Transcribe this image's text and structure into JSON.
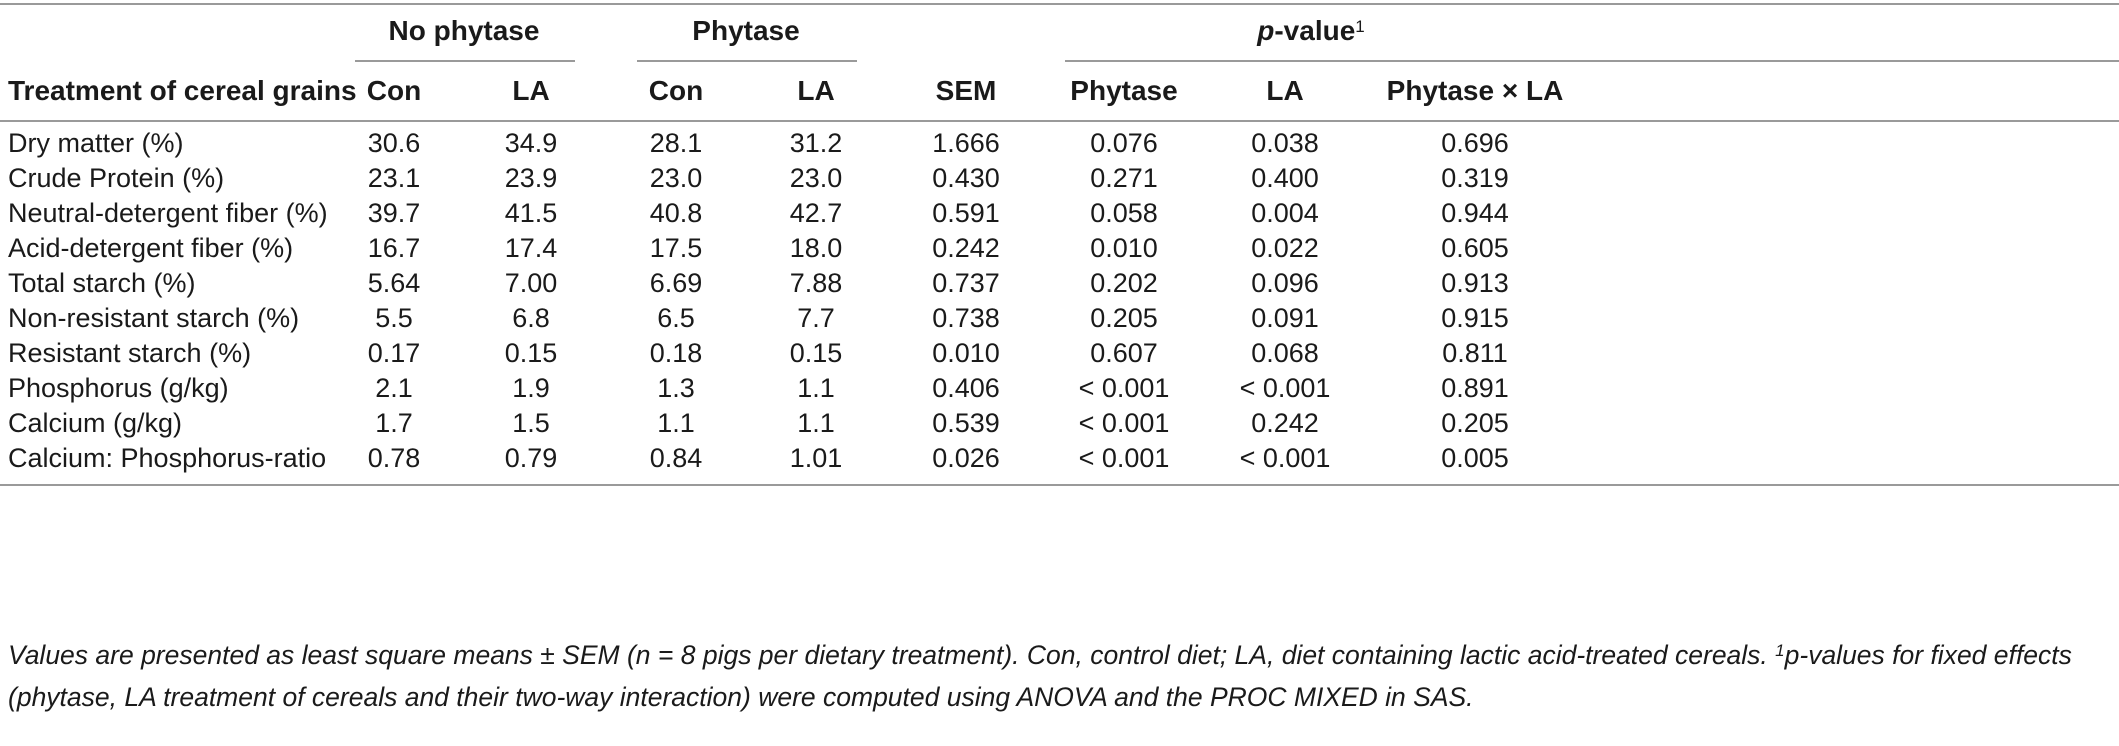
{
  "header": {
    "group_no_phytase": "No phytase",
    "group_phytase": "Phytase",
    "group_pvalue_prefix": "p",
    "group_pvalue_suffix": "-value",
    "group_pvalue_sup": "1",
    "row_header": "Treatment of cereal grains",
    "columns": [
      "Con",
      "LA",
      "Con",
      "LA",
      "SEM",
      "Phytase",
      "LA",
      "Phytase × LA"
    ]
  },
  "rows": [
    {
      "label": "Dry matter (%)",
      "values": [
        "30.6",
        "34.9",
        "28.1",
        "31.2",
        "1.666",
        "0.076",
        "0.038",
        "0.696"
      ]
    },
    {
      "label": "Crude Protein (%)",
      "values": [
        "23.1",
        "23.9",
        "23.0",
        "23.0",
        "0.430",
        "0.271",
        "0.400",
        "0.319"
      ]
    },
    {
      "label": "Neutral-detergent fiber (%)",
      "values": [
        "39.7",
        "41.5",
        "40.8",
        "42.7",
        "0.591",
        "0.058",
        "0.004",
        "0.944"
      ]
    },
    {
      "label": "Acid-detergent fiber (%)",
      "values": [
        "16.7",
        "17.4",
        "17.5",
        "18.0",
        "0.242",
        "0.010",
        "0.022",
        "0.605"
      ]
    },
    {
      "label": "Total starch (%)",
      "values": [
        "5.64",
        "7.00",
        "6.69",
        "7.88",
        "0.737",
        "0.202",
        "0.096",
        "0.913"
      ]
    },
    {
      "label": "Non-resistant starch (%)",
      "values": [
        "5.5",
        "6.8",
        "6.5",
        "7.7",
        "0.738",
        "0.205",
        "0.091",
        "0.915"
      ]
    },
    {
      "label": "Resistant starch (%)",
      "values": [
        "0.17",
        "0.15",
        "0.18",
        "0.15",
        "0.010",
        "0.607",
        "0.068",
        "0.811"
      ]
    },
    {
      "label": "Phosphorus (g/kg)",
      "values": [
        "2.1",
        "1.9",
        "1.3",
        "1.1",
        "0.406",
        "<  0.001",
        "< 0.001",
        "0.891"
      ]
    },
    {
      "label": "Calcium (g/kg)",
      "values": [
        "1.7",
        "1.5",
        "1.1",
        "1.1",
        "0.539",
        "<  0.001",
        "0.242",
        "0.205"
      ]
    },
    {
      "label": "Calcium: Phosphorus-ratio",
      "values": [
        "0.78",
        "0.79",
        "0.84",
        "1.01",
        "0.026",
        "<  0.001",
        "< 0.001",
        "0.005"
      ]
    }
  ],
  "footnote": {
    "text_a": "Values are presented as least square means ± SEM (n = 8 pigs per dietary treatment). Con, control diet; LA, diet containing lactic acid-treated cereals. ",
    "sup": "1",
    "text_b": "p-values for fixed effects (phytase, LA treatment of cereals and their two-way interaction) were computed using ANOVA and the PROC MIXED in SAS."
  }
}
